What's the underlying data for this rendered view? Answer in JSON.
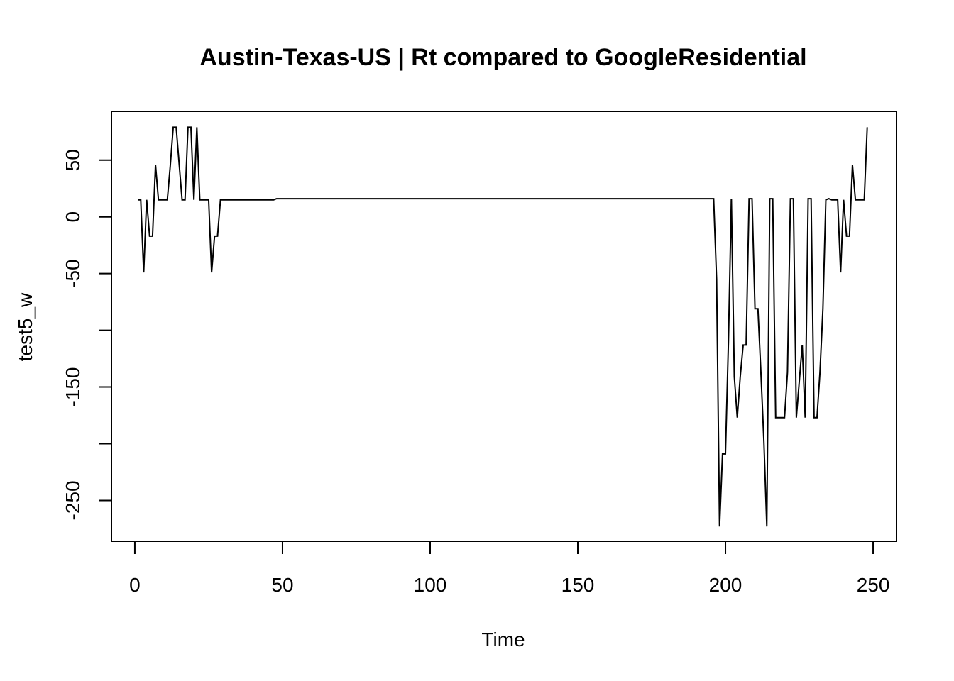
{
  "chart_data": {
    "type": "line",
    "title": "Austin-Texas-US | Rt compared to GoogleResidential",
    "xlabel": "Time",
    "ylabel": "test5_w",
    "xlim": [
      -7.92,
      257.92
    ],
    "ylim": [
      -286,
      93
    ],
    "x_ticks": [
      0,
      50,
      100,
      150,
      200,
      250
    ],
    "y_ticks": [
      -250,
      -200,
      -150,
      -100,
      -50,
      0,
      50
    ],
    "y_tick_labels": [
      "-250",
      "",
      "-150",
      "",
      "-50",
      "0",
      "50"
    ],
    "grid": false,
    "line_color": "#000000",
    "x": [
      1,
      2,
      3,
      4,
      5,
      6,
      7,
      8,
      9,
      10,
      11,
      12,
      13,
      14,
      15,
      16,
      17,
      18,
      19,
      20,
      21,
      22,
      23,
      24,
      25,
      26,
      27,
      28,
      29,
      30,
      47,
      48,
      195,
      196,
      197,
      198,
      199,
      200,
      201,
      202,
      203,
      204,
      205,
      206,
      207,
      208,
      209,
      210,
      211,
      212,
      213,
      214,
      215,
      216,
      217,
      218,
      219,
      220,
      221,
      222,
      223,
      224,
      225,
      226,
      227,
      228,
      229,
      230,
      231,
      232,
      233,
      234,
      235,
      236,
      237,
      238,
      239,
      240,
      241,
      242,
      243,
      244,
      245,
      246,
      247,
      248
    ],
    "values": [
      15,
      15,
      -49,
      15,
      -17,
      -17,
      46,
      15,
      15,
      15,
      15,
      45,
      79,
      79,
      47,
      15,
      15,
      79,
      79,
      15,
      79,
      15,
      15,
      15,
      15,
      -49,
      -17,
      -17,
      15,
      15,
      15,
      16,
      16,
      16,
      -55,
      -273,
      -209,
      -209,
      -111,
      16,
      -141,
      -177,
      -141,
      -113,
      -113,
      16,
      16,
      -81,
      -81,
      -137,
      -197,
      -273,
      16,
      16,
      -177,
      -177,
      -177,
      -177,
      -137,
      16,
      16,
      -177,
      -145,
      -113,
      -177,
      16,
      16,
      -177,
      -177,
      -137,
      -81,
      15,
      16,
      15,
      15,
      15,
      -49,
      15,
      -17,
      -17,
      46,
      15,
      15,
      15,
      15,
      79
    ]
  }
}
